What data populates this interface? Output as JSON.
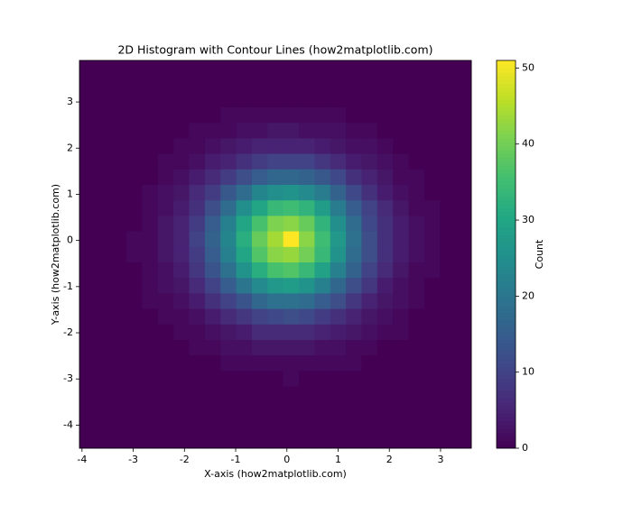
{
  "chart_data": {
    "type": "histogram2d",
    "title": "2D Histogram with Contour Lines (how2matplotlib.com)",
    "x_label": "X-axis (how2matplotlib.com)",
    "y_label": "Y-axis (how2matplotlib.com)",
    "colorbar_label": "Count",
    "colormap": "viridis",
    "xlim": [
      -4.05,
      3.6
    ],
    "ylim": [
      -4.5,
      3.9
    ],
    "xticks": [
      -4,
      -3,
      -2,
      -1,
      0,
      1,
      2,
      3
    ],
    "yticks": [
      -4,
      -3,
      -2,
      -1,
      0,
      1,
      2,
      3
    ],
    "clim": [
      0,
      51
    ],
    "cticks": [
      0,
      10,
      20,
      30,
      40,
      50
    ],
    "xbins": [
      -4.05,
      -3.744,
      -3.438,
      -3.132,
      -2.826,
      -2.52,
      -2.214,
      -1.908,
      -1.602,
      -1.296,
      -0.99,
      -0.684,
      -0.378,
      -0.072,
      0.234,
      0.54,
      0.846,
      1.152,
      1.458,
      1.764,
      2.07,
      2.376,
      2.682,
      2.988,
      3.294,
      3.6
    ],
    "ybins": [
      -4.5,
      -4.164,
      -3.828,
      -3.492,
      -3.156,
      -2.82,
      -2.484,
      -2.148,
      -1.812,
      -1.476,
      -1.14,
      -0.804,
      -0.468,
      -0.132,
      0.204,
      0.54,
      0.876,
      1.212,
      1.548,
      1.884,
      2.22,
      2.556,
      2.892,
      3.228,
      3.564,
      3.9
    ],
    "counts": [
      [
        0,
        0,
        0,
        0,
        0,
        0,
        0,
        0,
        0,
        0,
        0,
        0,
        0,
        0,
        0,
        0,
        0,
        0,
        0,
        0,
        0,
        0,
        0,
        0,
        0
      ],
      [
        0,
        0,
        0,
        0,
        0,
        0,
        0,
        0,
        0,
        0,
        0,
        0,
        0,
        0,
        0,
        0,
        0,
        0,
        0,
        0,
        0,
        0,
        0,
        0,
        0
      ],
      [
        0,
        0,
        0,
        0,
        0,
        0,
        0,
        0,
        0,
        0,
        0,
        0,
        0,
        0,
        0,
        0,
        0,
        0,
        0,
        0,
        0,
        0,
        0,
        0,
        0
      ],
      [
        0,
        0,
        0,
        0,
        0,
        0,
        0,
        0,
        0,
        0,
        0,
        0,
        0,
        0,
        0,
        0,
        0,
        0,
        0,
        0,
        0,
        0,
        0,
        0,
        0
      ],
      [
        0,
        0,
        0,
        0,
        0,
        0,
        0,
        0,
        0,
        0,
        0,
        0,
        0,
        1,
        0,
        0,
        0,
        0,
        0,
        0,
        0,
        0,
        0,
        0,
        0
      ],
      [
        0,
        0,
        0,
        0,
        0,
        0,
        0,
        0,
        0,
        1,
        1,
        1,
        1,
        1,
        1,
        1,
        1,
        1,
        0,
        0,
        0,
        0,
        0,
        0,
        0
      ],
      [
        0,
        0,
        0,
        0,
        0,
        0,
        0,
        1,
        1,
        2,
        2,
        3,
        3,
        3,
        3,
        2,
        2,
        1,
        1,
        0,
        0,
        0,
        0,
        0,
        0
      ],
      [
        0,
        0,
        0,
        0,
        0,
        0,
        1,
        1,
        2,
        3,
        4,
        6,
        6,
        6,
        6,
        5,
        4,
        3,
        2,
        1,
        1,
        0,
        0,
        0,
        0
      ],
      [
        0,
        0,
        0,
        0,
        0,
        1,
        1,
        2,
        4,
        6,
        8,
        10,
        11,
        12,
        11,
        9,
        7,
        5,
        3,
        2,
        1,
        0,
        0,
        0,
        0
      ],
      [
        0,
        0,
        0,
        0,
        1,
        1,
        2,
        4,
        7,
        10,
        13,
        17,
        19,
        19,
        18,
        15,
        12,
        8,
        5,
        3,
        2,
        1,
        0,
        0,
        0
      ],
      [
        0,
        0,
        0,
        0,
        1,
        2,
        3,
        6,
        10,
        15,
        20,
        24,
        27,
        28,
        26,
        22,
        17,
        12,
        8,
        4,
        2,
        1,
        0,
        0,
        0
      ],
      [
        0,
        0,
        0,
        0,
        1,
        2,
        4,
        8,
        13,
        19,
        26,
        32,
        36,
        37,
        34,
        29,
        22,
        16,
        10,
        6,
        3,
        1,
        1,
        0,
        0
      ],
      [
        0,
        0,
        0,
        1,
        1,
        3,
        5,
        9,
        15,
        22,
        30,
        37,
        42,
        43,
        40,
        34,
        26,
        18,
        12,
        7,
        4,
        2,
        1,
        0,
        0
      ],
      [
        0,
        0,
        0,
        1,
        1,
        3,
        5,
        10,
        16,
        23,
        32,
        39,
        44,
        51,
        42,
        35,
        27,
        19,
        12,
        7,
        4,
        2,
        1,
        0,
        0
      ],
      [
        0,
        0,
        0,
        0,
        1,
        3,
        5,
        9,
        15,
        22,
        30,
        36,
        41,
        42,
        39,
        33,
        25,
        18,
        11,
        7,
        4,
        2,
        1,
        0,
        0
      ],
      [
        0,
        0,
        0,
        0,
        1,
        2,
        4,
        7,
        12,
        18,
        25,
        30,
        34,
        35,
        33,
        28,
        21,
        15,
        10,
        6,
        3,
        1,
        1,
        0,
        0
      ],
      [
        0,
        0,
        0,
        0,
        1,
        2,
        3,
        6,
        9,
        14,
        18,
        23,
        25,
        26,
        24,
        21,
        16,
        11,
        7,
        4,
        2,
        1,
        0,
        0,
        0
      ],
      [
        0,
        0,
        0,
        0,
        0,
        1,
        2,
        4,
        6,
        9,
        12,
        15,
        17,
        17,
        16,
        14,
        11,
        7,
        5,
        3,
        1,
        1,
        0,
        0,
        0
      ],
      [
        0,
        0,
        0,
        0,
        0,
        1,
        1,
        2,
        4,
        5,
        7,
        9,
        10,
        10,
        10,
        8,
        6,
        4,
        3,
        2,
        1,
        0,
        0,
        0,
        0
      ],
      [
        0,
        0,
        0,
        0,
        0,
        0,
        1,
        1,
        2,
        3,
        4,
        5,
        5,
        5,
        5,
        4,
        3,
        2,
        2,
        1,
        0,
        0,
        0,
        0,
        0
      ],
      [
        0,
        0,
        0,
        0,
        0,
        0,
        0,
        1,
        1,
        1,
        2,
        2,
        3,
        3,
        2,
        2,
        2,
        1,
        1,
        0,
        0,
        0,
        0,
        0,
        0
      ],
      [
        0,
        0,
        0,
        0,
        0,
        0,
        0,
        0,
        0,
        1,
        1,
        1,
        1,
        1,
        1,
        1,
        1,
        0,
        0,
        0,
        0,
        0,
        0,
        0,
        0
      ],
      [
        0,
        0,
        0,
        0,
        0,
        0,
        0,
        0,
        0,
        0,
        0,
        0,
        0,
        0,
        0,
        0,
        0,
        0,
        0,
        0,
        0,
        0,
        0,
        0,
        0
      ],
      [
        0,
        0,
        0,
        0,
        0,
        0,
        0,
        0,
        0,
        0,
        0,
        0,
        0,
        0,
        0,
        0,
        0,
        0,
        0,
        0,
        0,
        0,
        0,
        0,
        0
      ],
      [
        0,
        0,
        0,
        0,
        0,
        0,
        0,
        0,
        0,
        0,
        0,
        0,
        0,
        0,
        0,
        0,
        0,
        0,
        0,
        0,
        0,
        0,
        0,
        0,
        0
      ]
    ]
  }
}
